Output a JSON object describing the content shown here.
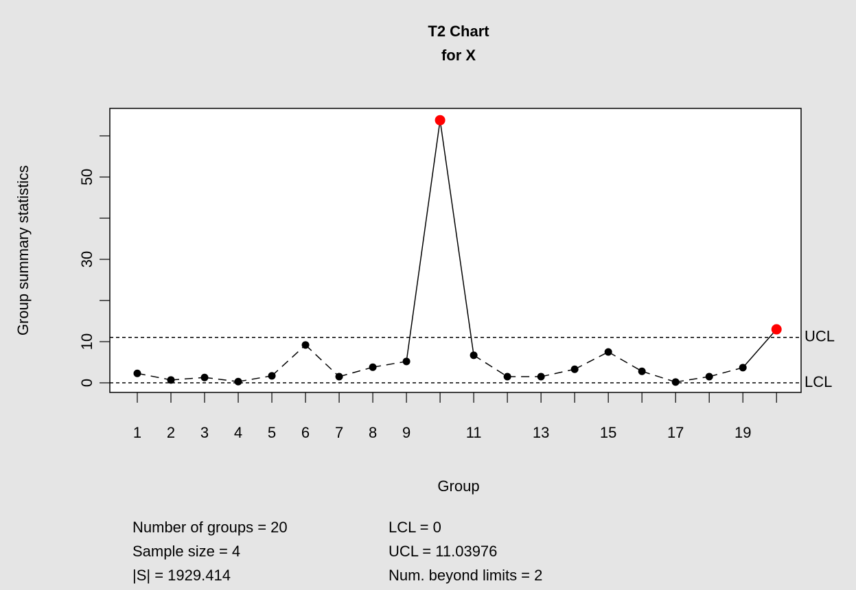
{
  "chart_data": {
    "type": "qcc",
    "title": [
      "T2 Chart",
      "for X"
    ],
    "x_label": "Group",
    "y_label": "Group summary statistics",
    "x": [
      1,
      2,
      3,
      4,
      5,
      6,
      7,
      8,
      9,
      10,
      11,
      12,
      13,
      14,
      15,
      16,
      17,
      18,
      19,
      20
    ],
    "series": [
      {
        "name": "T2",
        "color": "#000000",
        "values": [
          2.3,
          0.7,
          1.3,
          0.3,
          1.7,
          9.2,
          1.5,
          3.8,
          5.2,
          63.8,
          6.7,
          1.5,
          1.5,
          3.3,
          7.5,
          2.8,
          0.2,
          1.5,
          3.7,
          13
        ]
      }
    ],
    "violation_color": "#ff0000",
    "limits": {
      "lcl": 0,
      "ucl": 11.03976,
      "lcl_label": "LCL",
      "ucl_label": "UCL",
      "color": "#555555"
    },
    "xlim": [
      0.184,
      20.73
    ],
    "ylim": [
      -2.33,
      66.67
    ],
    "xticks": [
      1,
      2,
      3,
      4,
      5,
      6,
      7,
      8,
      9,
      {
        "value": 10,
        "label": null
      },
      11,
      {
        "value": 12,
        "label": null
      },
      13,
      {
        "value": 14,
        "label": null
      },
      15,
      {
        "value": 16,
        "label": null
      },
      17,
      {
        "value": 18,
        "label": null
      },
      19,
      {
        "value": 20,
        "label": null
      }
    ],
    "yticks": [
      0,
      10,
      {
        "value": 20,
        "label": null
      },
      30,
      {
        "value": 40,
        "label": null
      },
      50,
      {
        "value": 60,
        "label": null
      }
    ],
    "stats": [
      [
        "Number of groups = 20",
        "Sample size = 4",
        "|S| = 1929.414"
      ],
      [
        "LCL = 0",
        "UCL = 11.03976",
        "Num. beyond limits = 2"
      ]
    ]
  }
}
